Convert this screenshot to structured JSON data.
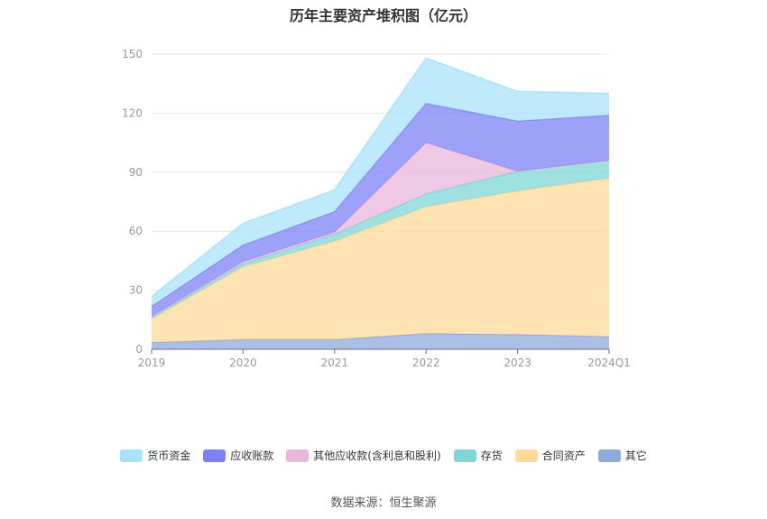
{
  "chart_data": {
    "type": "area",
    "stacked": true,
    "title": "历年主要资产堆积图（亿元）",
    "categories": [
      "2019",
      "2020",
      "2021",
      "2022",
      "2023",
      "2024Q1"
    ],
    "ylim": [
      0,
      150
    ],
    "yticks": [
      0,
      30,
      60,
      90,
      120,
      150
    ],
    "grid": true,
    "legend_position": "bottom",
    "series": [
      {
        "name": "其它",
        "color": "#8FAADC",
        "values": [
          3.5,
          5.0,
          5.0,
          8.0,
          7.5,
          6.5
        ]
      },
      {
        "name": "合同资产",
        "color": "#FFD99A",
        "values": [
          12.0,
          37.0,
          50.0,
          64.5,
          73.0,
          80.5
        ]
      },
      {
        "name": "存货",
        "color": "#7FD6D6",
        "values": [
          1.0,
          1.5,
          3.5,
          6.5,
          10.0,
          9.0
        ]
      },
      {
        "name": "其他应收款(含利息和股利)",
        "color": "#E8B7DC",
        "values": [
          0.3,
          1.0,
          1.0,
          26.0,
          0.0,
          0.0
        ]
      },
      {
        "name": "应收账款",
        "color": "#7C82F5",
        "values": [
          5.0,
          8.5,
          10.5,
          20.0,
          25.5,
          23.0
        ]
      },
      {
        "name": "货币资金",
        "color": "#A9E3FA",
        "values": [
          5.0,
          11.0,
          11.0,
          23.0,
          15.0,
          11.0
        ]
      }
    ]
  },
  "source": "数据来源：恒生聚源"
}
